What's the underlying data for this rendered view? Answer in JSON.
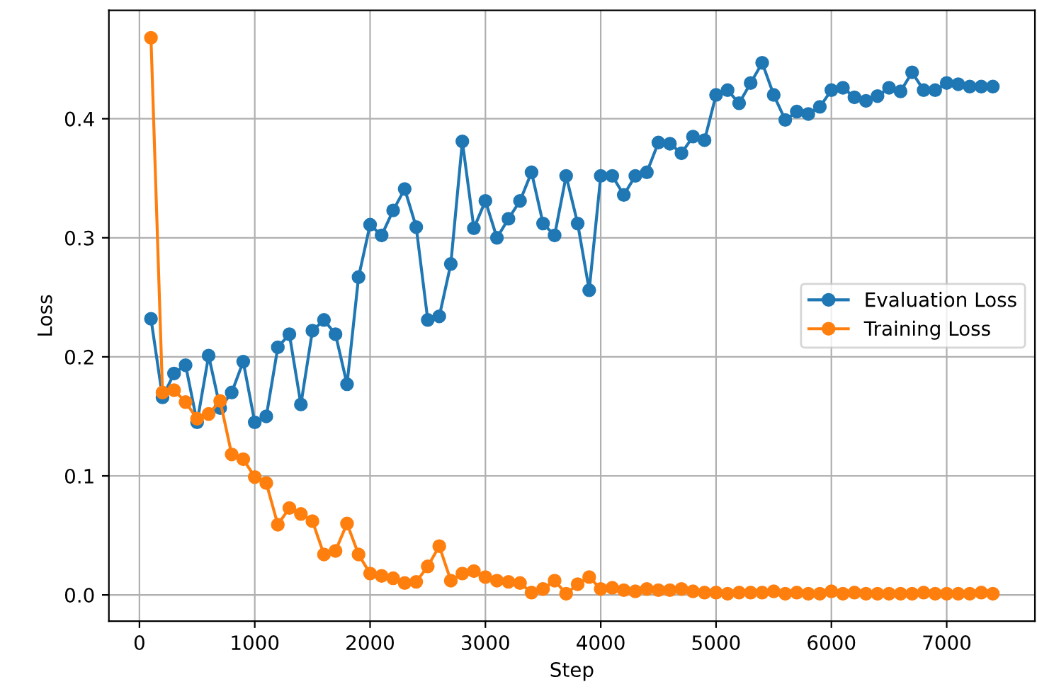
{
  "chart_data": {
    "type": "line",
    "xlabel": "Step",
    "ylabel": "Loss",
    "x": [
      100,
      200,
      300,
      400,
      500,
      600,
      700,
      800,
      900,
      1000,
      1100,
      1200,
      1300,
      1400,
      1500,
      1600,
      1700,
      1800,
      1900,
      2000,
      2100,
      2200,
      2300,
      2400,
      2500,
      2600,
      2700,
      2800,
      2900,
      3000,
      3100,
      3200,
      3300,
      3400,
      3500,
      3600,
      3700,
      3800,
      3900,
      4000,
      4100,
      4200,
      4300,
      4400,
      4500,
      4600,
      4700,
      4800,
      4900,
      5000,
      5100,
      5200,
      5300,
      5400,
      5500,
      5600,
      5700,
      5800,
      5900,
      6000,
      6100,
      6200,
      6300,
      6400,
      6500,
      6600,
      6700,
      6800,
      6900,
      7000,
      7100,
      7200,
      7300,
      7400
    ],
    "series": [
      {
        "name": "Evaluation Loss",
        "color": "#1f77b4",
        "values": [
          0.232,
          0.166,
          0.186,
          0.193,
          0.145,
          0.201,
          0.157,
          0.17,
          0.196,
          0.145,
          0.15,
          0.208,
          0.219,
          0.16,
          0.222,
          0.231,
          0.219,
          0.177,
          0.267,
          0.311,
          0.302,
          0.323,
          0.341,
          0.309,
          0.231,
          0.234,
          0.278,
          0.381,
          0.308,
          0.331,
          0.3,
          0.316,
          0.331,
          0.355,
          0.312,
          0.302,
          0.352,
          0.312,
          0.256,
          0.352,
          0.352,
          0.336,
          0.352,
          0.355,
          0.38,
          0.379,
          0.371,
          0.385,
          0.382,
          0.42,
          0.424,
          0.413,
          0.43,
          0.447,
          0.42,
          0.399,
          0.406,
          0.404,
          0.41,
          0.424,
          0.426,
          0.418,
          0.415,
          0.419,
          0.426,
          0.423,
          0.439,
          0.424,
          0.424,
          0.43,
          0.429,
          0.427,
          0.427,
          0.427
        ]
      },
      {
        "name": "Training Loss",
        "color": "#ff7f0e",
        "values": [
          0.468,
          0.17,
          0.172,
          0.162,
          0.148,
          0.152,
          0.163,
          0.118,
          0.114,
          0.099,
          0.094,
          0.059,
          0.073,
          0.068,
          0.062,
          0.034,
          0.037,
          0.06,
          0.034,
          0.018,
          0.016,
          0.014,
          0.01,
          0.011,
          0.024,
          0.041,
          0.012,
          0.018,
          0.02,
          0.015,
          0.012,
          0.011,
          0.01,
          0.002,
          0.005,
          0.012,
          0.001,
          0.009,
          0.015,
          0.005,
          0.006,
          0.004,
          0.003,
          0.005,
          0.004,
          0.004,
          0.005,
          0.003,
          0.002,
          0.002,
          0.001,
          0.002,
          0.002,
          0.002,
          0.003,
          0.001,
          0.002,
          0.001,
          0.001,
          0.003,
          0.001,
          0.002,
          0.001,
          0.001,
          0.001,
          0.001,
          0.001,
          0.002,
          0.001,
          0.001,
          0.001,
          0.001,
          0.002,
          0.001
        ]
      }
    ],
    "xlim": [
      -265,
      7765
    ],
    "xticks": [
      0,
      1000,
      2000,
      3000,
      4000,
      5000,
      6000,
      7000
    ],
    "ylim": [
      -0.022,
      0.491
    ],
    "yticks": [
      {
        "value": 0,
        "label": "0.0"
      },
      {
        "value": 0.1,
        "label": "0.1"
      },
      {
        "value": 0.2,
        "label": "0.2"
      },
      {
        "value": 0.3,
        "label": "0.3"
      },
      {
        "value": 0.4,
        "label": "0.4"
      }
    ],
    "grid": true,
    "legend": "center right",
    "marker": "circle",
    "line_style": "solid"
  }
}
